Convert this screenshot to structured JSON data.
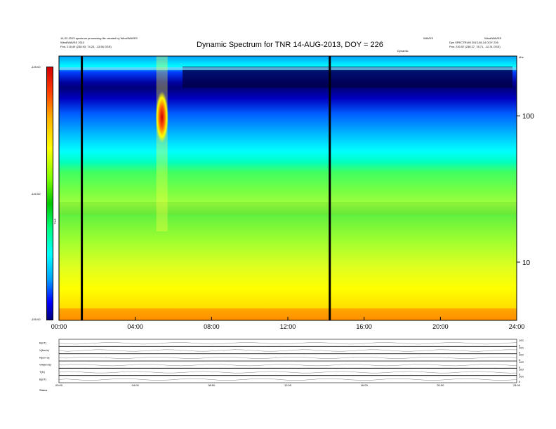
{
  "header": {
    "meta_left_1": "14-02-2013 spectrum processing file created by Wind/WAVES",
    "meta_left_2": "Wind/WAVES 2013",
    "pos_left": "Pos:  215.49 (238.93, 74.23, -13.56 GSE)",
    "meta_right_1": "WAVES",
    "meta_right_2": "Wind/WAVES",
    "meta_right_3": "Dyn SPECTRUM 2013-08-14 DOY 226",
    "pos_right": "Pos:  230.57 (238.27, 78.71, -12.31 GSE)",
    "sub_label": "Dynamic",
    "title": "Dynamic Spectrum for TNR 14-AUG-2013, DOY = 226"
  },
  "colors": {
    "black_band": "#000000",
    "frame": "#000000"
  },
  "chart_data": {
    "type": "heatmap",
    "title": "Dynamic Spectrum for TNR 14-AUG-2013, DOY = 226",
    "colorbar": {
      "label": "TNR",
      "ticks": [
        "-125.00",
        "-140.00",
        "-155.00"
      ],
      "range": [
        -155,
        -125
      ],
      "colormap": [
        "#00007a",
        "#0000ff",
        "#00a0ff",
        "#00ffff",
        "#00ff80",
        "#00c800",
        "#80ff00",
        "#ffff00",
        "#ffb000",
        "#ff4000",
        "#d00000"
      ]
    },
    "x": {
      "ticks": [
        "00:00",
        "04:00",
        "08:00",
        "12:00",
        "16:00",
        "20:00",
        "24:00"
      ],
      "range_hours": [
        0,
        24
      ]
    },
    "y": {
      "scale": "log",
      "ticks": [
        "100",
        "10"
      ],
      "unit_label": "kHz",
      "range_khz": [
        4,
        256
      ]
    },
    "data_gaps_hours": [
      1.2,
      14.2
    ],
    "features": [
      {
        "type": "radio burst",
        "time_hours": 5.4,
        "freq_khz_range": [
          80,
          120
        ],
        "level_db": -127
      },
      {
        "type": "noise band",
        "freq_khz_range": [
          4,
          6
        ],
        "level_db": -127
      }
    ]
  },
  "lower_panels": {
    "rows": [
      {
        "label": "B(nT)"
      },
      {
        "label": "V(km/s)"
      },
      {
        "label": "N(cm-3)"
      },
      {
        "label": "Vth(km/s)"
      },
      {
        "label": "T(K)"
      },
      {
        "label": "B(nT)"
      }
    ],
    "right_ticks": [
      "100",
      "0"
    ],
    "x_ticks": [
      "00:00",
      "04:00",
      "08:00",
      "12:00",
      "16:00",
      "20:00",
      "24:00"
    ],
    "footer_label": "Status"
  }
}
